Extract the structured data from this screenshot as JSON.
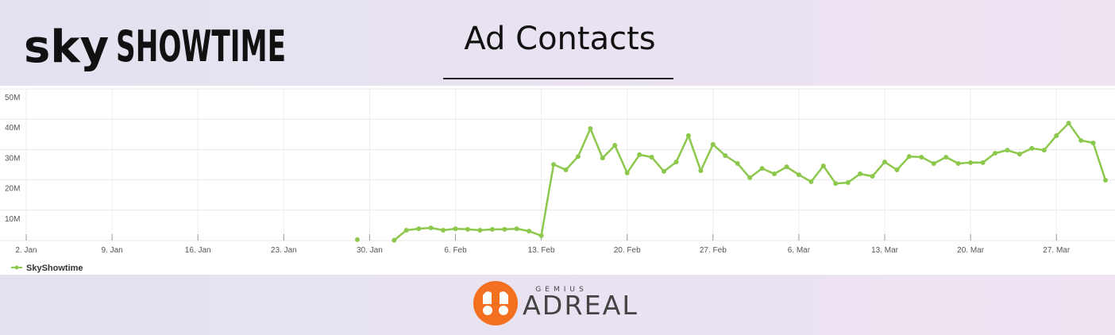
{
  "header": {
    "logo_sky": "sky",
    "logo_showtime": "SHOWTIME",
    "title": "Ad Contacts"
  },
  "chart_data": {
    "type": "line",
    "categories": [
      "2. Jan",
      null,
      null,
      null,
      null,
      null,
      null,
      "9. Jan",
      null,
      null,
      null,
      null,
      null,
      null,
      "16. Jan",
      null,
      null,
      null,
      null,
      null,
      null,
      "23. Jan",
      null,
      null,
      null,
      null,
      null,
      null,
      "30. Jan",
      null,
      null,
      null,
      null,
      null,
      null,
      "6. Feb",
      null,
      null,
      null,
      null,
      null,
      null,
      "13. Feb",
      null,
      null,
      null,
      null,
      null,
      null,
      "20. Feb",
      null,
      null,
      null,
      null,
      null,
      null,
      "27. Feb",
      null,
      null,
      null,
      null,
      null,
      null,
      "6. Mar",
      null,
      null,
      null,
      null,
      null,
      null,
      "13. Mar",
      null,
      null,
      null,
      null,
      null,
      null,
      "20. Mar",
      null,
      null,
      null,
      null,
      null,
      null,
      "27. Mar",
      null,
      null,
      null,
      null
    ],
    "series": [
      {
        "name": "SkyShowtime",
        "color": "#8cc84b",
        "values": [
          null,
          null,
          null,
          null,
          null,
          null,
          null,
          null,
          null,
          null,
          null,
          null,
          null,
          null,
          null,
          null,
          null,
          null,
          null,
          null,
          null,
          null,
          null,
          null,
          null,
          null,
          null,
          300000,
          null,
          null,
          100000,
          3400000,
          3900000,
          4200000,
          3400000,
          3900000,
          3700000,
          3400000,
          3700000,
          3700000,
          3900000,
          3100000,
          1600000,
          25100000,
          23300000,
          27700000,
          36900000,
          27200000,
          31400000,
          22300000,
          28300000,
          27500000,
          22800000,
          25900000,
          34600000,
          23000000,
          31700000,
          28000000,
          25400000,
          20700000,
          23800000,
          22000000,
          24300000,
          21700000,
          19400000,
          24600000,
          18800000,
          19100000,
          22000000,
          21200000,
          25900000,
          23300000,
          27700000,
          27500000,
          25400000,
          27500000,
          25400000,
          25700000,
          25700000,
          28800000,
          29800000,
          28500000,
          30400000,
          29800000,
          34600000,
          38700000,
          33000000,
          32200000,
          19900000
        ]
      }
    ],
    "ylim": [
      0,
      50000000
    ],
    "yticks": [
      {
        "value": 0,
        "label": ""
      },
      {
        "value": 10000000,
        "label": "10M"
      },
      {
        "value": 20000000,
        "label": "20M"
      },
      {
        "value": 30000000,
        "label": "30M"
      },
      {
        "value": 40000000,
        "label": "40M"
      },
      {
        "value": 50000000,
        "label": "50M"
      }
    ],
    "grid": true,
    "legend": "bottom-left"
  },
  "footer": {
    "brand_top": "GEMIUS",
    "brand": "ADREAL"
  }
}
